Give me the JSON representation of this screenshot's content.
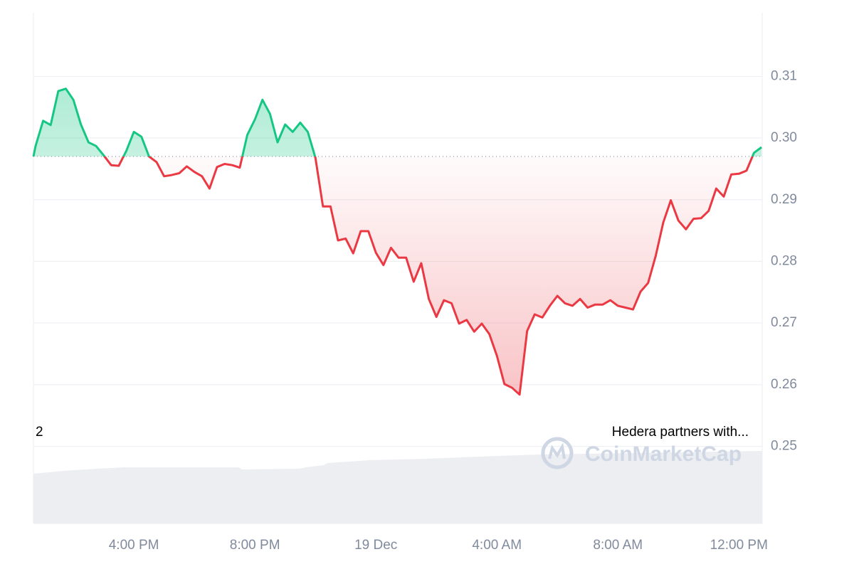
{
  "chart_data": {
    "type": "line",
    "x": [
      12.68,
      12.75,
      13.0,
      13.25,
      13.5,
      13.75,
      14.0,
      14.25,
      14.5,
      14.75,
      15.0,
      15.25,
      15.5,
      15.75,
      16.0,
      16.25,
      16.5,
      16.75,
      17.0,
      17.25,
      17.5,
      17.75,
      18.0,
      18.25,
      18.5,
      18.75,
      19.0,
      19.25,
      19.5,
      19.75,
      20.0,
      20.25,
      20.5,
      20.75,
      21.0,
      21.25,
      21.5,
      21.75,
      22.0,
      22.25,
      22.5,
      22.75,
      23.0,
      23.25,
      23.5,
      23.75,
      24.0,
      24.25,
      24.5,
      24.75,
      25.0,
      25.25,
      25.5,
      25.75,
      26.0,
      26.25,
      26.5,
      26.75,
      27.0,
      27.25,
      27.5,
      27.75,
      28.0,
      28.25,
      28.5,
      28.75,
      29.0,
      29.25,
      29.5,
      29.75,
      30.0,
      30.25,
      30.5,
      30.75,
      31.0,
      31.25,
      31.5,
      31.75,
      32.0,
      32.25,
      32.5,
      32.75,
      33.0,
      33.25,
      33.5,
      33.75,
      34.0,
      34.25,
      34.5,
      34.75,
      35.0,
      35.25,
      35.5,
      35.75,
      36.0,
      36.25,
      36.5,
      36.75
    ],
    "values": [
      0.297,
      0.2987,
      0.3028,
      0.3021,
      0.3076,
      0.308,
      0.3062,
      0.3022,
      0.2993,
      0.2987,
      0.2972,
      0.2956,
      0.2955,
      0.2979,
      0.301,
      0.3002,
      0.297,
      0.2961,
      0.2938,
      0.294,
      0.2943,
      0.2954,
      0.2945,
      0.2938,
      0.2918,
      0.2953,
      0.2958,
      0.2956,
      0.2952,
      0.3005,
      0.303,
      0.3062,
      0.3039,
      0.2993,
      0.3022,
      0.301,
      0.3025,
      0.301,
      0.2968,
      0.2889,
      0.2889,
      0.2834,
      0.2837,
      0.2813,
      0.2849,
      0.2849,
      0.2814,
      0.2794,
      0.2822,
      0.2806,
      0.2806,
      0.2767,
      0.2797,
      0.2739,
      0.271,
      0.2737,
      0.2732,
      0.2699,
      0.2705,
      0.2686,
      0.2699,
      0.2682,
      0.2647,
      0.2601,
      0.2595,
      0.2584,
      0.2687,
      0.2714,
      0.2709,
      0.2728,
      0.2744,
      0.2732,
      0.2728,
      0.2739,
      0.2725,
      0.273,
      0.273,
      0.2737,
      0.2728,
      0.2725,
      0.2722,
      0.2751,
      0.2765,
      0.2809,
      0.2863,
      0.2899,
      0.2866,
      0.2852,
      0.2869,
      0.287,
      0.2882,
      0.2918,
      0.2905,
      0.2941,
      0.2942,
      0.2947,
      0.2976,
      0.2985
    ],
    "baseline": 0.297,
    "color_up": "#16c784",
    "color_down": "#ea3943",
    "xlim": [
      12.68,
      36.77
    ],
    "xticks": [
      {
        "value": 16,
        "label": "4:00 PM"
      },
      {
        "value": 20,
        "label": "8:00 PM"
      },
      {
        "value": 24,
        "label": "19 Dec"
      },
      {
        "value": 28,
        "label": "4:00 AM"
      },
      {
        "value": 32,
        "label": "8:00 AM"
      },
      {
        "value": 36,
        "label": "12:00 PM"
      }
    ],
    "ylim": [
      0.2375,
      0.3203
    ],
    "yticks": [
      0.25,
      0.26,
      0.27,
      0.28,
      0.29,
      {
        "value": 0.3,
        "label": "0.30"
      },
      0.31
    ],
    "grid": true,
    "annotations": [
      "2",
      "Hedera partners with..."
    ],
    "watermark": "CoinMarketCap"
  }
}
